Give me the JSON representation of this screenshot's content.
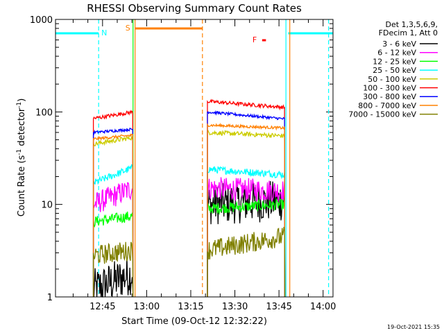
{
  "chart_data": {
    "type": "line",
    "title": "RHESSI Observing Summary Count Rates",
    "xlabel": "Start Time (09-Oct-12 12:32:22)",
    "ylabel_parts": [
      "Count Rate (s",
      "-1",
      " detector",
      "-1",
      ")"
    ],
    "yscale": "log",
    "ylim": [
      1,
      1000
    ],
    "y_ticks": [
      1,
      10,
      100,
      1000
    ],
    "y_tick_labels": [
      "1",
      "10",
      "100",
      "1000"
    ],
    "xlim_minutes": [
      -3.37,
      91.0
    ],
    "x_ticks": [
      {
        "m": 12.63,
        "label": "12:45"
      },
      {
        "m": 27.63,
        "label": "13:00"
      },
      {
        "m": 42.63,
        "label": "13:15"
      },
      {
        "m": 57.63,
        "label": "13:30"
      },
      {
        "m": 72.63,
        "label": "13:45"
      },
      {
        "m": 87.63,
        "label": "14:00"
      }
    ],
    "legend_header": [
      "Det 1,3,5,6,9,",
      "FDecim 1, Att 0"
    ],
    "legend_position": "right",
    "segments": [
      {
        "start": 9.5,
        "end": 23.0
      },
      {
        "start": 48.3,
        "end": 74.6
      }
    ],
    "series": [
      {
        "name": "3 - 6 keV",
        "color": "#000000",
        "seg_values": [
          [
            1.2,
            1.8
          ],
          [
            10,
            11
          ]
        ],
        "noise": 0.45
      },
      {
        "name": "6 - 12 keV",
        "color": "#ff00ff",
        "seg_values": [
          [
            10,
            15
          ],
          [
            15,
            14
          ]
        ],
        "noise": 0.25
      },
      {
        "name": "12 - 25 keV",
        "color": "#00ff00",
        "seg_values": [
          [
            6.5,
            7.5
          ],
          [
            9,
            10
          ]
        ],
        "noise": 0.12
      },
      {
        "name": "25 - 50 keV",
        "color": "#00ffff",
        "seg_values": [
          [
            17,
            25
          ],
          [
            24,
            21
          ]
        ],
        "noise": 0.08
      },
      {
        "name": "50 - 100 keV",
        "color": "#cccc00",
        "seg_values": [
          [
            45,
            53
          ],
          [
            60,
            55
          ]
        ],
        "noise": 0.05
      },
      {
        "name": "100 - 300 keV",
        "color": "#ff0000",
        "seg_values": [
          [
            85,
            100
          ],
          [
            130,
            112
          ]
        ],
        "noise": 0.04
      },
      {
        "name": "300 - 800 keV",
        "color": "#0000ff",
        "seg_values": [
          [
            60,
            65
          ],
          [
            100,
            84
          ]
        ],
        "noise": 0.03
      },
      {
        "name": "800 - 7000 keV",
        "color": "#ff8000",
        "seg_values": [
          [
            51,
            56
          ],
          [
            72,
            67
          ]
        ],
        "noise": 0.03
      },
      {
        "name": "7000 - 15000 keV",
        "color": "#808000",
        "seg_values": [
          [
            2.8,
            3.2
          ],
          [
            3.2,
            4.5
          ]
        ],
        "noise": 0.22
      }
    ],
    "markers": [
      {
        "label": "N",
        "color": "#00ffff",
        "bar_start": -3.37,
        "bar_end": 11.3,
        "line": 11.3,
        "style": "dashed"
      },
      {
        "label": "N",
        "color": "#00ffff",
        "bar_start": 75.8,
        "bar_end": 91.0,
        "line": 75.0,
        "style": "solid"
      },
      {
        "label": "N",
        "color": "#00ffff",
        "line": 89.5,
        "style": "dashed"
      },
      {
        "label": "S",
        "color": "#ff8000",
        "bar_start": 23.7,
        "bar_end": 46.6,
        "line": 23.7,
        "style": "solid"
      },
      {
        "label": "S",
        "color": "#ff8000",
        "line": 46.6,
        "style": "dashed"
      },
      {
        "label": "F",
        "color": "#ff0000",
        "bar_start": 66.9,
        "bar_end": 68.2
      },
      {
        "label": "green-edge",
        "color": "#00ff00",
        "line": 23.0,
        "style": "solid"
      },
      {
        "label": "orange-edge",
        "color": "#ff8000",
        "line": 76.3,
        "style": "solid"
      }
    ],
    "marker_text": [
      "N",
      "S",
      "F"
    ]
  },
  "footer": {
    "timestamp": "19-Oct-2021 15:35"
  }
}
